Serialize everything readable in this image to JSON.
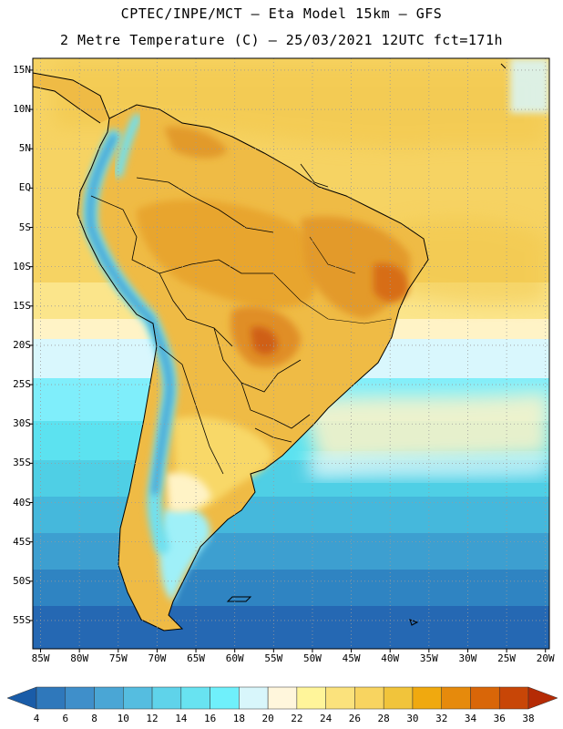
{
  "header": {
    "line1": "CPTEC/INPE/MCT –  Eta Model 15km – GFS",
    "line2": "2 Metre Temperature (C) – 25/03/2021 12UTC fct=171h"
  },
  "axes": {
    "lat_labels": [
      "15N",
      "10N",
      "5N",
      "EQ",
      "5S",
      "10S",
      "15S",
      "20S",
      "25S",
      "30S",
      "35S",
      "40S",
      "45S",
      "50S",
      "55S"
    ],
    "lon_labels": [
      "85W",
      "80W",
      "75W",
      "70W",
      "65W",
      "60W",
      "55W",
      "50W",
      "45W",
      "40W",
      "35W",
      "30W",
      "25W",
      "20W"
    ]
  },
  "colorbar": {
    "ticks": [
      "4",
      "6",
      "8",
      "10",
      "12",
      "14",
      "16",
      "18",
      "20",
      "22",
      "24",
      "26",
      "28",
      "30",
      "32",
      "34",
      "36",
      "38"
    ],
    "colors": [
      "#1a5ca8",
      "#2f78bb",
      "#3f8fca",
      "#4aa6d5",
      "#55bde0",
      "#5fd3ea",
      "#68e3f1",
      "#6ff0fb",
      "#d8f6fb",
      "#fff6dc",
      "#fff59a",
      "#fbe27c",
      "#f8d460",
      "#f1c43b",
      "#f0a90f",
      "#e68a0c",
      "#d96608",
      "#c84607",
      "#b52b05"
    ]
  },
  "colors": {
    "coast": "#000000",
    "grid": "#9a9a9a",
    "tropical_ocean": "#f6d565",
    "warm_land": "#e9b13c",
    "hot_core": "#d66a17",
    "andes": "#5fd6e8"
  }
}
